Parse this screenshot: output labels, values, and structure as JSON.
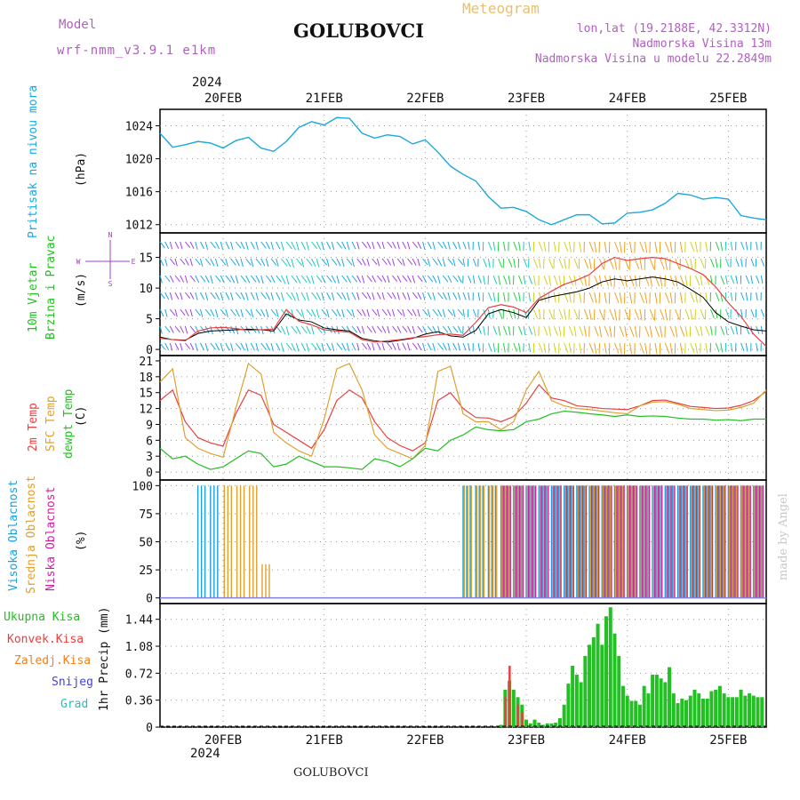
{
  "header": {
    "model_label": "Model",
    "model_name": "wrf-nmm_v3.9.1  e1km",
    "station": "GOLUBOVCI",
    "meteogram": "Meteogram",
    "lonlat": "lon,lat (19.2188E, 42.3312N)",
    "altitude": "Nadmorska Visina 13m",
    "model_altitude": "Nadmorska Visina u modelu 22.2849m",
    "year_top": "2024",
    "year_bottom": "2024",
    "footer_station": "GOLUBOVCI",
    "credit": "made by Angel"
  },
  "colors": {
    "pressure": "#1aa8e0",
    "temp2m": "#e84040",
    "sfc": "#e0a030",
    "dewpt": "#22c022",
    "high_cloud": "#1aa0e0",
    "mid_cloud": "#e0a030",
    "low_cloud": "#d020a0",
    "total_precip": "#22c022",
    "conv_precip": "#e84040",
    "frozen": "#f08020",
    "snow": "#4040e0",
    "grad": "#20c0c0",
    "wind_label": "#22c022",
    "wind_dir": "#a040c0"
  },
  "chart_data": [
    {
      "type": "line",
      "ylabel_top": "Pritisak na nivou mora",
      "ylabel": "(hPa)",
      "ylim": [
        1011,
        1026
      ],
      "yticks": [
        "1012",
        "1016",
        "1020",
        "1024"
      ],
      "xticks": [
        "20FEB",
        "21FEB",
        "22FEB",
        "23FEB",
        "24FEB",
        "25FEB"
      ],
      "x_hours": [
        0,
        3,
        6,
        9,
        12,
        15,
        18,
        21,
        24,
        27,
        30,
        33,
        36,
        39,
        42,
        45,
        48,
        51,
        54,
        57,
        60,
        63,
        66,
        69,
        72,
        75,
        78,
        81,
        84,
        87,
        90,
        93,
        96,
        99,
        102,
        105,
        108,
        111,
        114,
        117,
        120,
        123,
        126,
        129,
        132,
        135,
        138,
        141,
        144
      ],
      "values": [
        1023.1,
        1021.4,
        1021.7,
        1022.1,
        1021.9,
        1021.3,
        1022.2,
        1022.6,
        1021.3,
        1020.9,
        1022.1,
        1023.8,
        1024.5,
        1024.1,
        1025.0,
        1024.9,
        1023.1,
        1022.5,
        1022.9,
        1022.7,
        1021.8,
        1022.3,
        1020.8,
        1019.1,
        1018.1,
        1017.3,
        1015.4,
        1014.0,
        1014.1,
        1013.6,
        1012.6,
        1012.0,
        1012.6,
        1013.2,
        1013.2,
        1012.1,
        1012.2,
        1013.4,
        1013.5,
        1013.8,
        1014.6,
        1015.8,
        1015.6,
        1015.1,
        1015.3,
        1015.1,
        1013.1,
        1012.8,
        1012.6
      ]
    },
    {
      "type": "scatter",
      "ylabel_top": "10m Vjetar",
      "ylabel_top2": "Brzina i Pravac",
      "ylabel": "(m/s)",
      "dir_labels": [
        "N",
        "S",
        "W",
        "E"
      ],
      "ylim": [
        -1,
        19
      ],
      "yticks": [
        "0",
        "5",
        "10",
        "15"
      ],
      "x_hours": [
        0,
        3,
        6,
        9,
        12,
        15,
        18,
        21,
        24,
        27,
        30,
        33,
        36,
        39,
        42,
        45,
        48,
        51,
        54,
        57,
        60,
        63,
        66,
        69,
        72,
        75,
        78,
        81,
        84,
        87,
        90,
        93,
        96,
        99,
        102,
        105,
        108,
        111,
        114,
        117,
        120,
        123,
        126,
        129,
        132,
        135,
        138,
        141,
        144
      ],
      "speed": [
        2.0,
        1.6,
        1.5,
        2.6,
        3.0,
        3.1,
        3.2,
        3.3,
        3.2,
        3.0,
        5.8,
        4.8,
        4.5,
        3.5,
        3.2,
        3.0,
        1.8,
        1.4,
        1.2,
        1.5,
        1.8,
        2.5,
        2.9,
        2.2,
        2.0,
        3.1,
        5.8,
        6.5,
        6.0,
        5.2,
        8.0,
        8.6,
        9.0,
        9.4,
        10.0,
        11.0,
        11.5,
        11.2,
        11.5,
        11.8,
        11.5,
        11.0,
        9.8,
        8.5,
        6.0,
        4.5,
        3.8,
        3.2,
        3.0
      ],
      "gust": [
        1.8,
        1.6,
        1.4,
        3.0,
        3.5,
        3.6,
        3.4,
        3.1,
        3.2,
        3.3,
        6.5,
        4.6,
        4.0,
        3.2,
        3.0,
        2.8,
        1.6,
        1.2,
        1.4,
        1.6,
        1.9,
        2.1,
        2.4,
        2.5,
        2.3,
        4.4,
        6.8,
        7.3,
        6.9,
        6.0,
        8.3,
        9.5,
        10.6,
        11.3,
        12.2,
        14.0,
        15.0,
        14.5,
        14.8,
        15.0,
        14.8,
        14.0,
        13.2,
        12.2,
        10.2,
        7.6,
        5.4,
        2.5,
        0.5
      ]
    },
    {
      "type": "line",
      "ylabel_top": "2m Temp",
      "ylabel_top2": "SFC Temp",
      "ylabel_top3": "dewpt Temp",
      "ylabel": "(C)",
      "ylim": [
        -1.5,
        22
      ],
      "yticks": [
        "0",
        "3",
        "6",
        "9",
        "12",
        "15",
        "18",
        "21"
      ],
      "x_hours": [
        0,
        3,
        6,
        9,
        12,
        15,
        18,
        21,
        24,
        27,
        30,
        33,
        36,
        39,
        42,
        45,
        48,
        51,
        54,
        57,
        60,
        63,
        66,
        69,
        72,
        75,
        78,
        81,
        84,
        87,
        90,
        93,
        96,
        99,
        102,
        105,
        108,
        111,
        114,
        117,
        120,
        123,
        126,
        129,
        132,
        135,
        138,
        141,
        144
      ],
      "series": [
        {
          "name": "2m Temp",
          "values": [
            13.5,
            15.5,
            9.5,
            6.5,
            5.5,
            4.9,
            11.0,
            15.5,
            14.5,
            9.0,
            7.5,
            6.0,
            4.5,
            8.0,
            13.5,
            15.5,
            14.0,
            9.5,
            6.5,
            5.0,
            4.0,
            5.5,
            13.5,
            15.0,
            12.0,
            10.3,
            10.2,
            9.5,
            10.5,
            13.0,
            16.5,
            14.0,
            13.5,
            12.5,
            12.3,
            12.0,
            11.9,
            11.8,
            12.5,
            13.5,
            13.6,
            13.0,
            12.4,
            12.2,
            12.0,
            12.1,
            12.6,
            13.5,
            15.2
          ]
        },
        {
          "name": "SFC Temp",
          "values": [
            17.0,
            19.5,
            6.5,
            4.5,
            3.5,
            2.8,
            12.0,
            20.5,
            18.5,
            7.5,
            5.5,
            4.0,
            3.0,
            10.0,
            19.5,
            20.5,
            15.5,
            7.0,
            4.5,
            3.5,
            2.5,
            5.0,
            19.0,
            20.0,
            11.0,
            9.5,
            9.5,
            8.0,
            9.5,
            15.5,
            19.0,
            13.5,
            12.5,
            12.0,
            11.8,
            11.5,
            11.2,
            11.0,
            12.5,
            13.2,
            13.3,
            12.8,
            12.0,
            11.8,
            11.6,
            11.7,
            12.2,
            13.0,
            15.5
          ]
        },
        {
          "name": "dewpt Temp",
          "values": [
            4.5,
            2.5,
            3.0,
            1.5,
            0.5,
            1.0,
            2.5,
            4.0,
            3.5,
            1.0,
            1.5,
            3.0,
            2.0,
            1.0,
            1.0,
            0.8,
            0.5,
            2.5,
            2.0,
            1.0,
            2.5,
            4.5,
            4.0,
            6.0,
            7.0,
            8.5,
            8.0,
            7.8,
            8.0,
            9.5,
            10.0,
            11.0,
            11.5,
            11.3,
            11.0,
            10.8,
            10.5,
            10.8,
            10.5,
            10.6,
            10.5,
            10.2,
            10.0,
            10.0,
            9.8,
            9.9,
            9.7,
            10.0,
            10.0
          ]
        }
      ]
    },
    {
      "type": "bar",
      "ylabel_top": "Visoka Oblacnost",
      "ylabel_top2": "Srednja Oblacnost",
      "ylabel_top3": "Niska Oblacnost",
      "ylabel": "(%)",
      "ylim": [
        -5,
        105
      ],
      "yticks": [
        "0",
        "25",
        "50",
        "75",
        "100"
      ],
      "x_hours": [
        0,
        3,
        6,
        9,
        12,
        15,
        18,
        21,
        24,
        27,
        30,
        33,
        36,
        39,
        42,
        45,
        48,
        51,
        54,
        57,
        60,
        63,
        66,
        69,
        72,
        75,
        78,
        81,
        84,
        87,
        90,
        93,
        96,
        99,
        102,
        105,
        108,
        111,
        114,
        117,
        120,
        123,
        126,
        129,
        132,
        135,
        138,
        141,
        144
      ],
      "series": [
        {
          "name": "Visoka Oblacnost",
          "values": [
            0,
            0,
            0,
            100,
            100,
            0,
            0,
            0,
            0,
            0,
            0,
            0,
            0,
            0,
            0,
            0,
            0,
            0,
            0,
            0,
            0,
            0,
            0,
            0,
            100,
            100,
            100,
            100,
            100,
            100,
            100,
            100,
            100,
            100,
            100,
            100,
            100,
            100,
            100,
            100,
            100,
            100,
            100,
            100,
            100,
            100,
            100,
            100,
            100
          ]
        },
        {
          "name": "Srednja Oblacnost",
          "values": [
            0,
            0,
            0,
            0,
            0,
            100,
            100,
            100,
            30,
            0,
            0,
            0,
            0,
            0,
            0,
            0,
            0,
            0,
            0,
            0,
            0,
            0,
            0,
            0,
            100,
            100,
            100,
            100,
            100,
            100,
            100,
            100,
            100,
            100,
            100,
            100,
            100,
            100,
            100,
            100,
            100,
            100,
            100,
            100,
            100,
            100,
            100,
            100,
            100
          ]
        },
        {
          "name": "Niska Oblacnost",
          "values": [
            0,
            0,
            0,
            0,
            0,
            0,
            0,
            0,
            0,
            0,
            0,
            0,
            0,
            0,
            0,
            0,
            0,
            0,
            0,
            0,
            0,
            0,
            0,
            0,
            0,
            0,
            0,
            100,
            100,
            100,
            100,
            100,
            100,
            100,
            100,
            100,
            100,
            100,
            100,
            100,
            100,
            100,
            100,
            100,
            100,
            100,
            100,
            100,
            100
          ]
        }
      ]
    },
    {
      "type": "bar",
      "legend": [
        "Ukupna Kisa",
        "Konvek.Kisa",
        "Zaledj.Kisa",
        "Snijeg",
        "Grad"
      ],
      "ylabel": "1hr Precip (mm)",
      "ylim": [
        0,
        1.65
      ],
      "yticks": [
        "0",
        "0.36",
        "0.72",
        "1.08",
        "1.44"
      ],
      "xticks": [
        "20FEB",
        "21FEB",
        "22FEB",
        "23FEB",
        "24FEB",
        "25FEB"
      ],
      "x_hours": [
        81,
        82,
        83,
        84,
        85,
        86,
        87,
        88,
        89,
        90,
        91,
        92,
        93,
        94,
        95,
        96,
        97,
        98,
        99,
        100,
        101,
        102,
        103,
        104,
        105,
        106,
        107,
        108,
        109,
        110,
        111,
        112,
        113,
        114,
        115,
        116,
        117,
        118,
        119,
        120,
        121,
        122,
        123,
        124,
        125,
        126,
        127,
        128,
        129,
        130,
        131,
        132,
        133,
        134,
        135,
        136,
        137,
        138,
        139,
        140,
        141,
        142,
        143
      ],
      "series": [
        {
          "name": "Ukupna Kisa",
          "values": [
            0.03,
            0.5,
            0.62,
            0.5,
            0.4,
            0.3,
            0.1,
            0.05,
            0.1,
            0.06,
            0.03,
            0.05,
            0.05,
            0.06,
            0.12,
            0.3,
            0.58,
            0.82,
            0.7,
            0.6,
            0.95,
            1.1,
            1.2,
            1.38,
            1.1,
            1.48,
            1.6,
            1.25,
            0.95,
            0.55,
            0.42,
            0.35,
            0.35,
            0.3,
            0.55,
            0.45,
            0.7,
            0.7,
            0.65,
            0.6,
            0.8,
            0.45,
            0.32,
            0.38,
            0.36,
            0.42,
            0.5,
            0.45,
            0.38,
            0.38,
            0.48,
            0.5,
            0.55,
            0.45,
            0.4,
            0.4,
            0.4,
            0.5,
            0.42,
            0.45,
            0.42,
            0.4,
            0.4
          ]
        },
        {
          "name": "Konvek.Kisa",
          "values": [
            0.0,
            0.4,
            0.82,
            0.0,
            0.3,
            0.2,
            0.0,
            0.0,
            0.0,
            0.0,
            0.0,
            0.0,
            0.0,
            0.0,
            0.0,
            0.0,
            0.0,
            0.0,
            0.0,
            0.0,
            0.0,
            0.0,
            0.0,
            0.0,
            0.0,
            0.0,
            0.0,
            0.0,
            0.0,
            0.0,
            0.0,
            0.0,
            0.0,
            0.0,
            0.0,
            0.0,
            0.0,
            0.0,
            0.0,
            0.0,
            0.0,
            0.0,
            0.0,
            0.0,
            0.0,
            0.0,
            0.0,
            0.0,
            0.0,
            0.0,
            0.0,
            0.0,
            0.0,
            0.0,
            0.0,
            0.0,
            0.0,
            0.0,
            0.0,
            0.0,
            0.0,
            0.0,
            0.0
          ]
        }
      ]
    }
  ]
}
